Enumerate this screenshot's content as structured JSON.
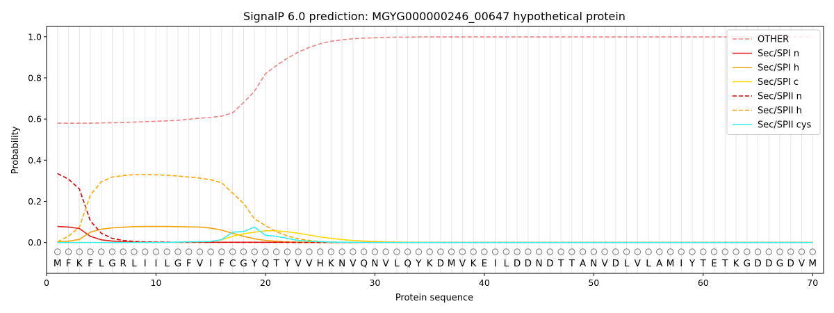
{
  "chart_data": {
    "type": "line",
    "title": "SignalP 6.0 prediction: MGYG000000246_00647 hypothetical protein",
    "xlabel": "Protein sequence",
    "ylabel": "Probability",
    "xlim": [
      0,
      71
    ],
    "ylim": [
      -0.15,
      1.05
    ],
    "xticks": [
      0,
      10,
      20,
      30,
      40,
      50,
      60,
      70
    ],
    "yticks": [
      0.0,
      0.2,
      0.4,
      0.6,
      0.8,
      1.0
    ],
    "x_start": 1,
    "sequence": [
      "M",
      "F",
      "K",
      "F",
      "L",
      "G",
      "R",
      "L",
      "I",
      "I",
      "L",
      "G",
      "F",
      "V",
      "I",
      "F",
      "C",
      "G",
      "Y",
      "Q",
      "T",
      "Y",
      "V",
      "V",
      "H",
      "K",
      "N",
      "V",
      "Q",
      "N",
      "V",
      "L",
      "Q",
      "Y",
      "K",
      "D",
      "M",
      "V",
      "K",
      "E",
      "I",
      "L",
      "D",
      "D",
      "N",
      "D",
      "T",
      "T",
      "A",
      "N",
      "V",
      "D",
      "L",
      "V",
      "L",
      "A",
      "M",
      "I",
      "Y",
      "T",
      "E",
      "T",
      "K",
      "G",
      "D",
      "D",
      "G",
      "D",
      "V",
      "M"
    ],
    "legend_position": "top-right",
    "series": [
      {
        "name": "OTHER",
        "color": "#f08080",
        "dash": "dashed",
        "values": [
          0.58,
          0.58,
          0.58,
          0.58,
          0.581,
          0.582,
          0.583,
          0.585,
          0.587,
          0.589,
          0.591,
          0.594,
          0.599,
          0.604,
          0.608,
          0.614,
          0.63,
          0.68,
          0.735,
          0.82,
          0.86,
          0.895,
          0.925,
          0.948,
          0.966,
          0.978,
          0.985,
          0.99,
          0.993,
          0.995,
          0.997,
          0.998,
          0.998,
          0.999,
          0.999,
          0.999,
          0.999,
          0.999,
          0.999,
          0.999,
          0.999,
          0.999,
          0.999,
          0.999,
          0.999,
          0.999,
          0.999,
          0.999,
          0.999,
          0.999,
          0.999,
          0.999,
          0.999,
          0.999,
          0.999,
          0.999,
          0.999,
          0.999,
          0.999,
          0.999,
          0.999,
          0.999,
          0.999,
          0.999,
          0.999,
          0.999,
          0.999,
          0.999,
          0.999,
          0.999
        ]
      },
      {
        "name": "Sec/SPI n",
        "color": "#e31a1c",
        "dash": "solid",
        "values": [
          0.078,
          0.075,
          0.068,
          0.03,
          0.013,
          0.007,
          0.004,
          0.002,
          0.001,
          0.001,
          0.001,
          0.001,
          0.001,
          0.001,
          0.001,
          0.001,
          0.001,
          0.001,
          0.001,
          0.001,
          0.001,
          0.001,
          0.001,
          0.001,
          0.001,
          0,
          0,
          0,
          0,
          0,
          0,
          0,
          0,
          0,
          0,
          0,
          0,
          0,
          0,
          0,
          0,
          0,
          0,
          0,
          0,
          0,
          0,
          0,
          0,
          0,
          0,
          0,
          0,
          0,
          0,
          0,
          0,
          0,
          0,
          0,
          0,
          0,
          0,
          0,
          0,
          0,
          0,
          0,
          0,
          0
        ]
      },
      {
        "name": "Sec/SPI h",
        "color": "#f0a30a",
        "dash": "solid",
        "values": [
          0.003,
          0.006,
          0.015,
          0.05,
          0.065,
          0.071,
          0.074,
          0.077,
          0.078,
          0.078,
          0.078,
          0.077,
          0.076,
          0.075,
          0.07,
          0.06,
          0.045,
          0.03,
          0.018,
          0.01,
          0.006,
          0.003,
          0.002,
          0.001,
          0.001,
          0,
          0,
          0,
          0,
          0,
          0,
          0,
          0,
          0,
          0,
          0,
          0,
          0,
          0,
          0,
          0,
          0,
          0,
          0,
          0,
          0,
          0,
          0,
          0,
          0,
          0,
          0,
          0,
          0,
          0,
          0,
          0,
          0,
          0,
          0,
          0,
          0,
          0,
          0,
          0,
          0,
          0,
          0,
          0,
          0
        ]
      },
      {
        "name": "Sec/SPI c",
        "color": "#ffd700",
        "dash": "solid",
        "values": [
          0,
          0,
          0,
          0,
          0,
          0,
          0,
          0,
          0,
          0,
          0.001,
          0.001,
          0.002,
          0.003,
          0.005,
          0.013,
          0.03,
          0.042,
          0.05,
          0.057,
          0.057,
          0.052,
          0.045,
          0.036,
          0.027,
          0.02,
          0.014,
          0.01,
          0.007,
          0.005,
          0.003,
          0.002,
          0.001,
          0.001,
          0,
          0,
          0,
          0,
          0,
          0,
          0,
          0,
          0,
          0,
          0,
          0,
          0,
          0,
          0,
          0,
          0,
          0,
          0,
          0,
          0,
          0,
          0,
          0,
          0,
          0,
          0,
          0,
          0,
          0,
          0,
          0,
          0,
          0,
          0,
          0
        ]
      },
      {
        "name": "Sec/SPII n",
        "color": "#d40000",
        "dash": "dashed",
        "values": [
          0.335,
          0.308,
          0.26,
          0.105,
          0.045,
          0.02,
          0.01,
          0.005,
          0.003,
          0.002,
          0.002,
          0.001,
          0.001,
          0.001,
          0.001,
          0.001,
          0.001,
          0.001,
          0.001,
          0.001,
          0.001,
          0.001,
          0,
          0,
          0,
          0,
          0,
          0,
          0,
          0,
          0,
          0,
          0,
          0,
          0,
          0,
          0,
          0,
          0,
          0,
          0,
          0,
          0,
          0,
          0,
          0,
          0,
          0,
          0,
          0,
          0,
          0,
          0,
          0,
          0,
          0,
          0,
          0,
          0,
          0,
          0,
          0,
          0,
          0,
          0,
          0,
          0,
          0,
          0,
          0
        ]
      },
      {
        "name": "Sec/SPII h",
        "color": "#ffa500",
        "dash": "dashed",
        "values": [
          0.003,
          0.03,
          0.075,
          0.23,
          0.295,
          0.318,
          0.325,
          0.33,
          0.33,
          0.329,
          0.327,
          0.323,
          0.318,
          0.313,
          0.305,
          0.29,
          0.24,
          0.19,
          0.115,
          0.082,
          0.052,
          0.032,
          0.018,
          0.01,
          0.005,
          0.002,
          0.001,
          0.001,
          0,
          0,
          0,
          0,
          0,
          0,
          0,
          0,
          0,
          0,
          0,
          0,
          0,
          0,
          0,
          0,
          0,
          0,
          0,
          0,
          0,
          0,
          0,
          0,
          0,
          0,
          0,
          0,
          0,
          0,
          0,
          0,
          0,
          0,
          0,
          0,
          0,
          0,
          0,
          0,
          0,
          0
        ]
      },
      {
        "name": "Sec/SPII cys",
        "color": "#33eeee",
        "dash": "solid",
        "values": [
          0,
          0,
          0,
          0,
          0,
          0,
          0,
          0,
          0,
          0,
          0,
          0.002,
          0.003,
          0.004,
          0.005,
          0.014,
          0.05,
          0.053,
          0.075,
          0.035,
          0.03,
          0.02,
          0.01,
          0.006,
          0.004,
          0.002,
          0.001,
          0.001,
          0,
          0,
          0,
          0,
          0,
          0,
          0,
          0,
          0,
          0,
          0,
          0,
          0,
          0,
          0,
          0,
          0,
          0,
          0,
          0,
          0,
          0,
          0,
          0,
          0,
          0,
          0,
          0,
          0,
          0,
          0,
          0,
          0,
          0,
          0,
          0,
          0,
          0,
          0,
          0,
          0,
          0
        ]
      }
    ]
  }
}
